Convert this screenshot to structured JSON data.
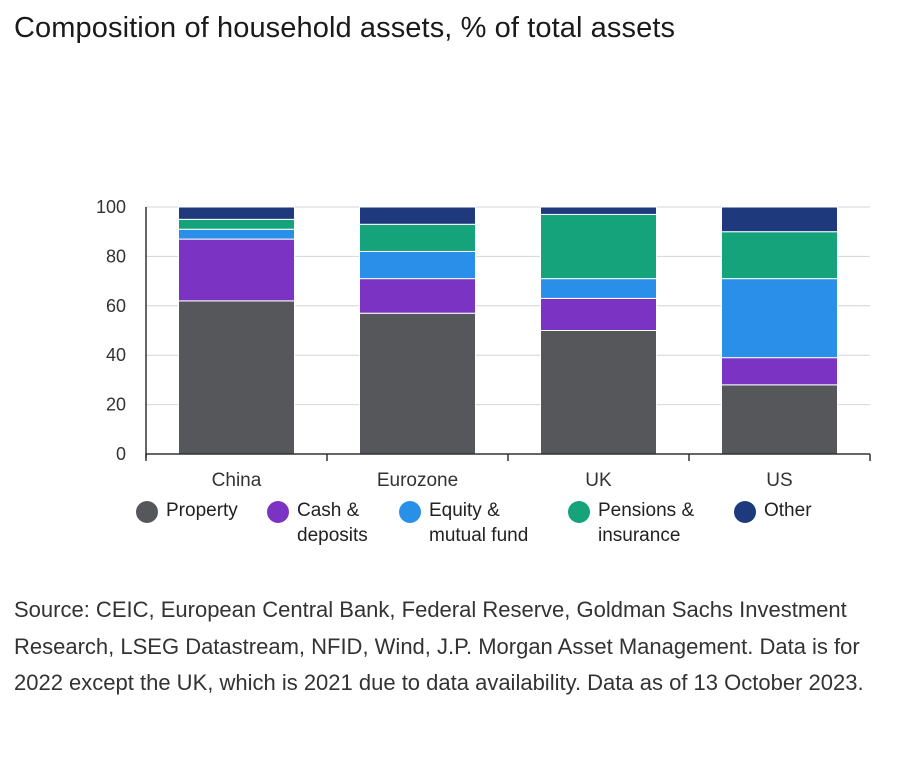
{
  "title": "Composition of household assets, % of total assets",
  "chart_data": {
    "type": "bar",
    "stacked": true,
    "title": "Composition of household assets, % of total assets",
    "xlabel": "",
    "ylabel": "",
    "ylim": [
      0,
      100
    ],
    "yticks": [
      0,
      20,
      40,
      60,
      80,
      100
    ],
    "grid": true,
    "categories": [
      "China",
      "Eurozone",
      "UK",
      "US"
    ],
    "series": [
      {
        "name": "Property",
        "color": "#55575b",
        "values": [
          62,
          57,
          50,
          28
        ]
      },
      {
        "name": "Cash & deposits",
        "color": "#7b33c4",
        "values": [
          25,
          14,
          13,
          11
        ]
      },
      {
        "name": "Equity & mutual fund",
        "color": "#2a8fe8",
        "values": [
          4,
          11,
          8,
          32
        ]
      },
      {
        "name": "Pensions & insurance",
        "color": "#14a37a",
        "values": [
          4,
          11,
          26,
          19
        ]
      },
      {
        "name": "Other",
        "color": "#1e3a7d",
        "values": [
          5,
          7,
          3,
          10
        ]
      }
    ]
  },
  "legend": [
    {
      "label": "Property",
      "color": "#55575b"
    },
    {
      "label": "Cash &\ndeposits",
      "color": "#7b33c4"
    },
    {
      "label": "Equity &\nmutual fund",
      "color": "#2a8fe8"
    },
    {
      "label": "Pensions &\ninsurance",
      "color": "#14a37a"
    },
    {
      "label": "Other",
      "color": "#1e3a7d"
    }
  ],
  "source": "Source: CEIC, European Central Bank, Federal Reserve, Goldman Sachs Investment Research, LSEG Datastream, NFID, Wind, J.P. Morgan Asset Management. Data is for 2022 except the UK, which is 2021 due to data availability. Data as of 13 October 2023."
}
